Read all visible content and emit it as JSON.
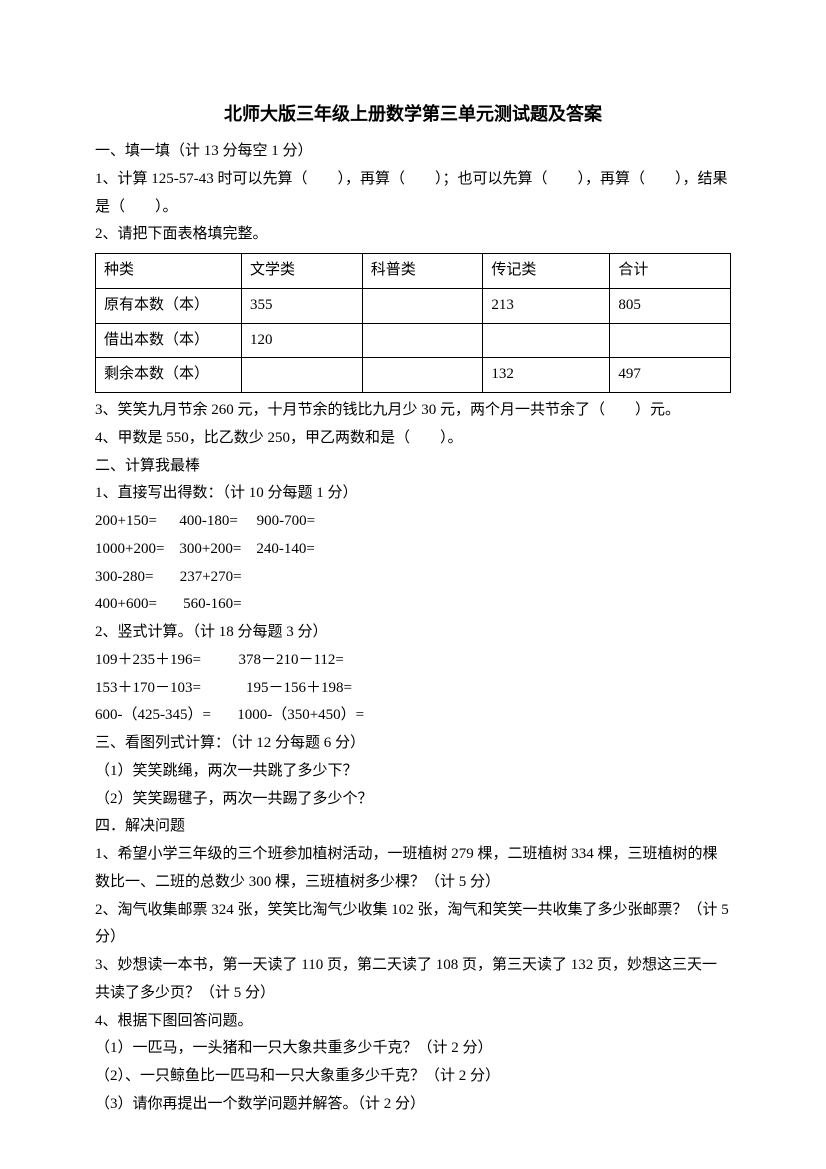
{
  "title": "北师大版三年级上册数学第三单元测试题及答案",
  "section1": {
    "header": "一、填一填（计 13 分每空 1 分）",
    "q1": "1、计算 125-57-43 时可以先算（　　），再算（　　）；也可以先算（　　），再算（　　），结果是（　　）。",
    "q2": "2、请把下面表格填完整。",
    "q3": "3、笑笑九月节余 260 元，十月节余的钱比九月少 30 元，两个月一共节余了（　　）元。",
    "q4": "4、甲数是 550，比乙数少 250，甲乙两数和是（　　）。"
  },
  "table": {
    "columns": [
      "种类",
      "文学类",
      "科普类",
      "传记类",
      "合计"
    ],
    "rows": [
      [
        "原有本数（本）",
        "355",
        "",
        "213",
        "805"
      ],
      [
        "借出本数（本）",
        "120",
        "",
        "",
        ""
      ],
      [
        "剩余本数（本）",
        "",
        "",
        "132",
        "497"
      ]
    ]
  },
  "section2": {
    "header": "二、计算我最棒",
    "q1_header": "1、直接写出得数：（计 10 分每题 1 分）",
    "q1_line1": "200+150=      400-180=     900-700=",
    "q1_line2": "1000+200=    300+200=    240-140=",
    "q1_line3": "300-280=       237+270=",
    "q1_line4": "400+600=       560-160=",
    "q2_header": "2、竖式计算。（计 18 分每题 3 分）",
    "q2_line1": "109＋235＋196=          378－210－112=",
    "q2_line2": "153＋170－103=            195－156＋198=",
    "q2_line3": "600-（425-345）=       1000-（350+450）="
  },
  "section3": {
    "header": "三、看图列式计算：（计 12 分每题 6 分）",
    "q1": "（1）笑笑跳绳，两次一共跳了多少下？",
    "q2": "（2）笑笑踢毽子，两次一共踢了多少个？"
  },
  "section4": {
    "header": "四．解决问题",
    "q1": "1、希望小学三年级的三个班参加植树活动，一班植树 279 棵，二班植树 334 棵，三班植树的棵数比一、二班的总数少 300 棵，三班植树多少棵？（计 5 分）",
    "q2": "2、淘气收集邮票 324 张，笑笑比淘气少收集 102 张，淘气和笑笑一共收集了多少张邮票？（计 5 分）",
    "q3": "3、妙想读一本书，第一天读了 110 页，第二天读了 108 页，第三天读了 132 页，妙想这三天一共读了多少页？（计 5 分）",
    "q4_header": "4、根据下图回答问题。",
    "q4_1": "（1）一匹马，一头猪和一只大象共重多少千克？（计 2 分）",
    "q4_2": "（2）、一只鲸鱼比一匹马和一只大象重多少千克？（计 2 分）",
    "q4_3": "（3）请你再提出一个数学问题并解答。（计 2 分）"
  }
}
